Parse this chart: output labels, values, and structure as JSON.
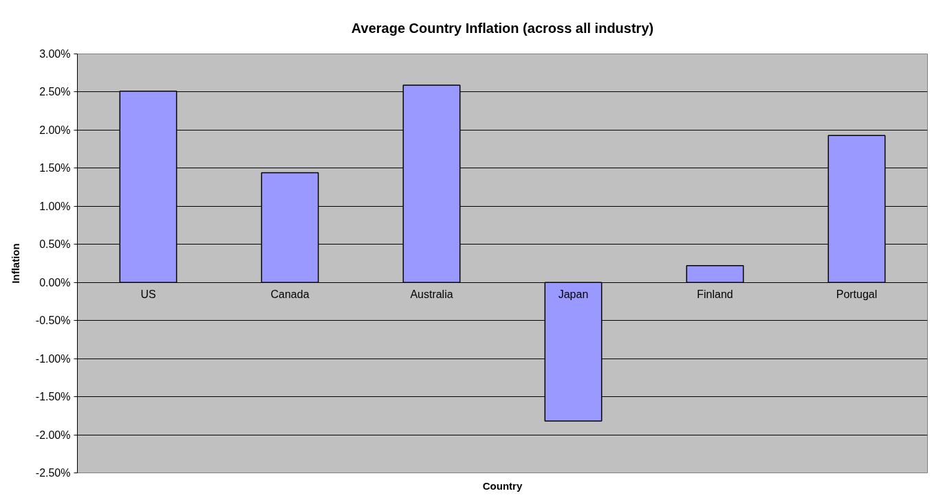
{
  "chart_data": {
    "type": "bar",
    "title": "Average Country Inflation (across all industry)",
    "xlabel": "Country",
    "ylabel": "Inflation",
    "categories": [
      "US",
      "Canada",
      "Australia",
      "Japan",
      "Finland",
      "Portugal"
    ],
    "values": [
      2.51,
      1.44,
      2.59,
      -1.82,
      0.22,
      1.93
    ],
    "color": "#9999ff",
    "ylim": [
      -2.5,
      3.0
    ],
    "yticks": [
      {
        "value": -2.5,
        "label": "-2.50%"
      },
      {
        "value": -2.0,
        "label": "-2.00%"
      },
      {
        "value": -1.5,
        "label": "-1.50%"
      },
      {
        "value": -1.0,
        "label": "-1.00%"
      },
      {
        "value": -0.5,
        "label": "-0.50%"
      },
      {
        "value": 0,
        "label": "0.00%"
      },
      {
        "value": 0.5,
        "label": "0.50%"
      },
      {
        "value": 1.0,
        "label": "1.00%"
      },
      {
        "value": 1.5,
        "label": "1.50%"
      },
      {
        "value": 2.0,
        "label": "2.00%"
      },
      {
        "value": 2.5,
        "label": "2.50%"
      },
      {
        "value": 3.0,
        "label": "3.00%"
      }
    ],
    "grid": "y"
  }
}
